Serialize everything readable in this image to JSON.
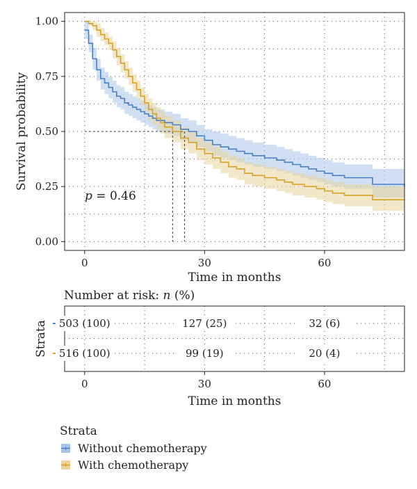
{
  "chart_data": {
    "type": "line",
    "ylabel": "Survival probability",
    "xlabel": "Time in months",
    "xlim": [
      -5,
      80
    ],
    "ylim": [
      -0.04,
      1.04
    ],
    "x_ticks": [
      0,
      30,
      60
    ],
    "y_ticks": [
      0.0,
      0.25,
      0.5,
      0.75,
      1.0
    ],
    "y_tick_labels": [
      "0.00",
      "0.25",
      "0.50",
      "0.75",
      "1.00"
    ],
    "grid": true,
    "pvalue": {
      "label_p": "p",
      "label_rest": " = 0.46"
    },
    "median_lines": [
      {
        "series": "Without chemotherapy",
        "x": 25,
        "y": 0.5
      },
      {
        "series": "With chemotherapy",
        "x": 22,
        "y": 0.5
      }
    ],
    "series": [
      {
        "name": "Without chemotherapy",
        "color": "#4a7fc1",
        "band_color": "#a9c6e8",
        "points": [
          [
            0,
            0.96
          ],
          [
            1,
            0.9
          ],
          [
            2,
            0.83
          ],
          [
            3,
            0.78
          ],
          [
            4,
            0.74
          ],
          [
            5,
            0.72
          ],
          [
            6,
            0.7
          ],
          [
            7,
            0.68
          ],
          [
            8,
            0.66
          ],
          [
            9,
            0.65
          ],
          [
            10,
            0.63
          ],
          [
            11,
            0.62
          ],
          [
            12,
            0.61
          ],
          [
            13,
            0.6
          ],
          [
            14,
            0.59
          ],
          [
            15,
            0.58
          ],
          [
            16,
            0.57
          ],
          [
            17,
            0.56
          ],
          [
            18,
            0.55
          ],
          [
            20,
            0.54
          ],
          [
            22,
            0.53
          ],
          [
            24,
            0.51
          ],
          [
            26,
            0.5
          ],
          [
            28,
            0.48
          ],
          [
            30,
            0.46
          ],
          [
            32,
            0.44
          ],
          [
            34,
            0.43
          ],
          [
            36,
            0.42
          ],
          [
            38,
            0.41
          ],
          [
            40,
            0.4
          ],
          [
            42,
            0.39
          ],
          [
            45,
            0.38
          ],
          [
            48,
            0.37
          ],
          [
            50,
            0.36
          ],
          [
            52,
            0.35
          ],
          [
            54,
            0.34
          ],
          [
            56,
            0.33
          ],
          [
            58,
            0.32
          ],
          [
            60,
            0.31
          ],
          [
            62,
            0.3
          ],
          [
            65,
            0.29
          ],
          [
            70,
            0.29
          ],
          [
            72,
            0.26
          ],
          [
            75,
            0.26
          ],
          [
            80,
            0.25
          ]
        ],
        "upper": [
          [
            0,
            1.0
          ],
          [
            1,
            0.94
          ],
          [
            2,
            0.88
          ],
          [
            3,
            0.83
          ],
          [
            4,
            0.79
          ],
          [
            5,
            0.77
          ],
          [
            6,
            0.75
          ],
          [
            7,
            0.73
          ],
          [
            8,
            0.71
          ],
          [
            9,
            0.7
          ],
          [
            10,
            0.68
          ],
          [
            11,
            0.67
          ],
          [
            12,
            0.66
          ],
          [
            13,
            0.65
          ],
          [
            14,
            0.64
          ],
          [
            15,
            0.63
          ],
          [
            16,
            0.62
          ],
          [
            17,
            0.61
          ],
          [
            18,
            0.6
          ],
          [
            20,
            0.59
          ],
          [
            22,
            0.58
          ],
          [
            24,
            0.56
          ],
          [
            26,
            0.55
          ],
          [
            28,
            0.53
          ],
          [
            30,
            0.51
          ],
          [
            32,
            0.5
          ],
          [
            34,
            0.49
          ],
          [
            36,
            0.48
          ],
          [
            38,
            0.47
          ],
          [
            40,
            0.46
          ],
          [
            42,
            0.45
          ],
          [
            45,
            0.44
          ],
          [
            48,
            0.43
          ],
          [
            50,
            0.42
          ],
          [
            52,
            0.41
          ],
          [
            54,
            0.4
          ],
          [
            56,
            0.39
          ],
          [
            58,
            0.38
          ],
          [
            60,
            0.37
          ],
          [
            62,
            0.36
          ],
          [
            65,
            0.35
          ],
          [
            70,
            0.35
          ],
          [
            72,
            0.33
          ],
          [
            75,
            0.33
          ],
          [
            80,
            0.33
          ]
        ],
        "lower": [
          [
            0,
            0.92
          ],
          [
            1,
            0.86
          ],
          [
            2,
            0.78
          ],
          [
            3,
            0.73
          ],
          [
            4,
            0.69
          ],
          [
            5,
            0.67
          ],
          [
            6,
            0.65
          ],
          [
            7,
            0.63
          ],
          [
            8,
            0.61
          ],
          [
            9,
            0.6
          ],
          [
            10,
            0.58
          ],
          [
            11,
            0.57
          ],
          [
            12,
            0.56
          ],
          [
            13,
            0.55
          ],
          [
            14,
            0.54
          ],
          [
            15,
            0.53
          ],
          [
            16,
            0.52
          ],
          [
            17,
            0.51
          ],
          [
            18,
            0.5
          ],
          [
            20,
            0.49
          ],
          [
            22,
            0.48
          ],
          [
            24,
            0.46
          ],
          [
            26,
            0.45
          ],
          [
            28,
            0.43
          ],
          [
            30,
            0.41
          ],
          [
            32,
            0.39
          ],
          [
            34,
            0.38
          ],
          [
            36,
            0.37
          ],
          [
            38,
            0.36
          ],
          [
            40,
            0.35
          ],
          [
            42,
            0.34
          ],
          [
            45,
            0.33
          ],
          [
            48,
            0.32
          ],
          [
            50,
            0.31
          ],
          [
            52,
            0.3
          ],
          [
            54,
            0.29
          ],
          [
            56,
            0.28
          ],
          [
            58,
            0.27
          ],
          [
            60,
            0.26
          ],
          [
            62,
            0.25
          ],
          [
            65,
            0.24
          ],
          [
            70,
            0.24
          ],
          [
            72,
            0.2
          ],
          [
            75,
            0.2
          ],
          [
            80,
            0.2
          ]
        ]
      },
      {
        "name": "With chemotherapy",
        "color": "#d4a227",
        "band_color": "#e8d49c",
        "points": [
          [
            0,
            1.0
          ],
          [
            1,
            0.99
          ],
          [
            2,
            0.98
          ],
          [
            3,
            0.96
          ],
          [
            4,
            0.94
          ],
          [
            5,
            0.92
          ],
          [
            6,
            0.9
          ],
          [
            7,
            0.87
          ],
          [
            8,
            0.84
          ],
          [
            9,
            0.81
          ],
          [
            10,
            0.78
          ],
          [
            11,
            0.75
          ],
          [
            12,
            0.72
          ],
          [
            13,
            0.69
          ],
          [
            14,
            0.66
          ],
          [
            15,
            0.63
          ],
          [
            16,
            0.6
          ],
          [
            17,
            0.58
          ],
          [
            18,
            0.56
          ],
          [
            19,
            0.54
          ],
          [
            20,
            0.52
          ],
          [
            22,
            0.5
          ],
          [
            24,
            0.47
          ],
          [
            26,
            0.45
          ],
          [
            28,
            0.42
          ],
          [
            30,
            0.4
          ],
          [
            32,
            0.38
          ],
          [
            34,
            0.36
          ],
          [
            36,
            0.34
          ],
          [
            38,
            0.33
          ],
          [
            40,
            0.31
          ],
          [
            42,
            0.3
          ],
          [
            45,
            0.29
          ],
          [
            48,
            0.28
          ],
          [
            50,
            0.27
          ],
          [
            52,
            0.26
          ],
          [
            55,
            0.25
          ],
          [
            58,
            0.24
          ],
          [
            60,
            0.23
          ],
          [
            62,
            0.22
          ],
          [
            65,
            0.21
          ],
          [
            68,
            0.21
          ],
          [
            70,
            0.21
          ],
          [
            72,
            0.19
          ],
          [
            75,
            0.19
          ],
          [
            80,
            0.19
          ]
        ],
        "upper": [
          [
            0,
            1.0
          ],
          [
            1,
            1.0
          ],
          [
            2,
            1.0
          ],
          [
            3,
            0.99
          ],
          [
            4,
            0.97
          ],
          [
            5,
            0.95
          ],
          [
            6,
            0.93
          ],
          [
            7,
            0.91
          ],
          [
            8,
            0.88
          ],
          [
            9,
            0.85
          ],
          [
            10,
            0.82
          ],
          [
            11,
            0.79
          ],
          [
            12,
            0.76
          ],
          [
            13,
            0.73
          ],
          [
            14,
            0.7
          ],
          [
            15,
            0.67
          ],
          [
            16,
            0.65
          ],
          [
            17,
            0.63
          ],
          [
            18,
            0.61
          ],
          [
            19,
            0.59
          ],
          [
            20,
            0.57
          ],
          [
            22,
            0.55
          ],
          [
            24,
            0.52
          ],
          [
            26,
            0.5
          ],
          [
            28,
            0.47
          ],
          [
            30,
            0.45
          ],
          [
            32,
            0.43
          ],
          [
            34,
            0.41
          ],
          [
            36,
            0.39
          ],
          [
            38,
            0.38
          ],
          [
            40,
            0.36
          ],
          [
            42,
            0.35
          ],
          [
            45,
            0.34
          ],
          [
            48,
            0.33
          ],
          [
            50,
            0.32
          ],
          [
            52,
            0.31
          ],
          [
            55,
            0.3
          ],
          [
            58,
            0.29
          ],
          [
            60,
            0.28
          ],
          [
            62,
            0.27
          ],
          [
            65,
            0.26
          ],
          [
            68,
            0.26
          ],
          [
            70,
            0.26
          ],
          [
            72,
            0.25
          ],
          [
            75,
            0.25
          ],
          [
            80,
            0.25
          ]
        ],
        "lower": [
          [
            0,
            1.0
          ],
          [
            1,
            0.98
          ],
          [
            2,
            0.96
          ],
          [
            3,
            0.93
          ],
          [
            4,
            0.91
          ],
          [
            5,
            0.89
          ],
          [
            6,
            0.87
          ],
          [
            7,
            0.83
          ],
          [
            8,
            0.8
          ],
          [
            9,
            0.77
          ],
          [
            10,
            0.74
          ],
          [
            11,
            0.71
          ],
          [
            12,
            0.68
          ],
          [
            13,
            0.65
          ],
          [
            14,
            0.62
          ],
          [
            15,
            0.59
          ],
          [
            16,
            0.55
          ],
          [
            17,
            0.53
          ],
          [
            18,
            0.51
          ],
          [
            19,
            0.49
          ],
          [
            20,
            0.47
          ],
          [
            22,
            0.45
          ],
          [
            24,
            0.42
          ],
          [
            26,
            0.4
          ],
          [
            28,
            0.37
          ],
          [
            30,
            0.35
          ],
          [
            32,
            0.33
          ],
          [
            34,
            0.31
          ],
          [
            36,
            0.29
          ],
          [
            38,
            0.28
          ],
          [
            40,
            0.26
          ],
          [
            42,
            0.25
          ],
          [
            45,
            0.24
          ],
          [
            48,
            0.23
          ],
          [
            50,
            0.22
          ],
          [
            52,
            0.21
          ],
          [
            55,
            0.2
          ],
          [
            58,
            0.19
          ],
          [
            60,
            0.18
          ],
          [
            62,
            0.17
          ],
          [
            65,
            0.16
          ],
          [
            68,
            0.16
          ],
          [
            70,
            0.16
          ],
          [
            72,
            0.14
          ],
          [
            75,
            0.14
          ],
          [
            80,
            0.14
          ]
        ]
      }
    ],
    "risk_table": {
      "title_prefix": "Number at risk: ",
      "title_n": "n",
      "title_suffix": " (%)",
      "ylabel": "Strata",
      "xlabel": "Time in months",
      "x_ticks": [
        0,
        30,
        60
      ],
      "rows": [
        {
          "name": "Without chemotherapy",
          "color": "#4a7fc1",
          "values": [
            "503 (100)",
            "127 (25)",
            "32 (6)"
          ]
        },
        {
          "name": "With chemotherapy",
          "color": "#d4a227",
          "values": [
            "516 (100)",
            "99 (19)",
            "20 (4)"
          ]
        }
      ]
    },
    "legend": {
      "title": "Strata",
      "items": [
        {
          "label": "Without chemotherapy",
          "color": "#4a7fc1",
          "fill": "#a9c6e8"
        },
        {
          "label": "With chemotherapy",
          "color": "#d4a227",
          "fill": "#e8d49c"
        }
      ]
    }
  }
}
